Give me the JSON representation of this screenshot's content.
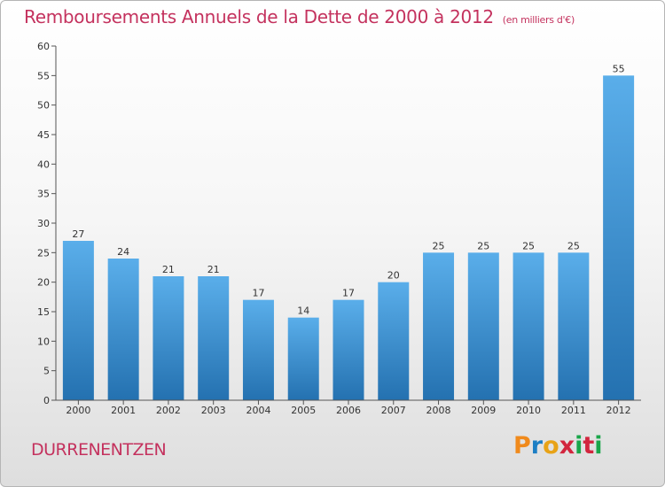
{
  "chart_data": {
    "type": "bar",
    "title": "Remboursements Annuels de la Dette de 2000 à 2012",
    "subtitle": "(en milliers d'€)",
    "categories": [
      "2000",
      "2001",
      "2002",
      "2003",
      "2004",
      "2005",
      "2006",
      "2007",
      "2008",
      "2009",
      "2010",
      "2011",
      "2012"
    ],
    "values": [
      27,
      24,
      21,
      21,
      17,
      14,
      17,
      20,
      25,
      25,
      25,
      25,
      55
    ],
    "value_labels": [
      "27",
      "24",
      "21",
      "21",
      "17",
      "14",
      "17",
      "20",
      "25",
      "25",
      "25",
      "25",
      "55"
    ],
    "ylim": [
      0,
      60
    ],
    "yticks": [
      0,
      5,
      10,
      15,
      20,
      25,
      30,
      35,
      40,
      45,
      50,
      55,
      60
    ],
    "xlabel": "",
    "ylabel": "",
    "grid": false,
    "legend": "none",
    "colors": {
      "bar_top": "#5aaeea",
      "bar_bottom": "#2471b0",
      "axis": "#555555",
      "title": "#c4325e"
    }
  },
  "footer": {
    "commune": "DURRENENTZEN",
    "logo_letters": [
      "P",
      "r",
      "o",
      "x",
      "i",
      "t",
      "i"
    ],
    "logo_colors": [
      "#f08a1c",
      "#1d7fc4",
      "#e8a317",
      "#d2263e",
      "#1aa64a",
      "#d2263e",
      "#1aa64a"
    ]
  }
}
